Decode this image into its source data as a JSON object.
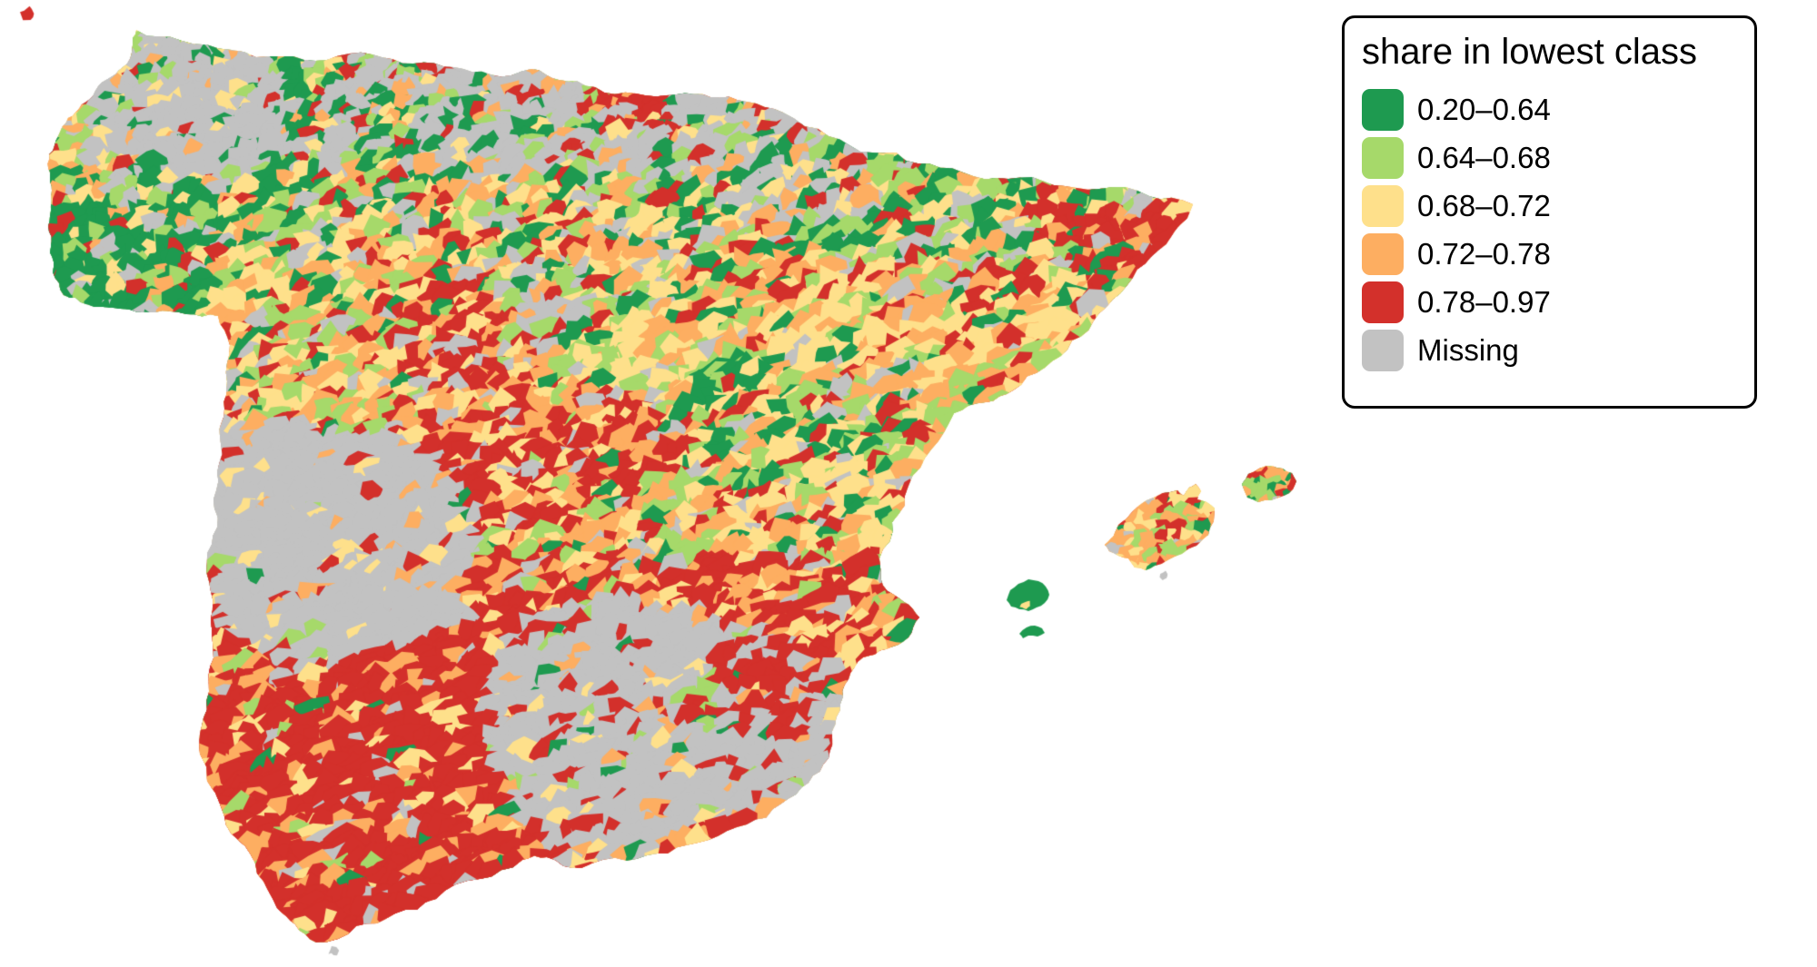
{
  "figure": {
    "type": "choropleth map",
    "region": "Spain — municipality-level map (mainland Spain and Balearic Islands; areas outside Spain are white)",
    "background_color": "#ffffff"
  },
  "legend": {
    "title": "share in lowest class",
    "position": "top-right",
    "border_color": "#000000",
    "background_color": "#ffffff",
    "items": [
      {
        "label": "0.20–0.64",
        "color": "#1e9a50"
      },
      {
        "label": "0.64–0.68",
        "color": "#a6d96a"
      },
      {
        "label": "0.68–0.72",
        "color": "#fee08b"
      },
      {
        "label": "0.72–0.78",
        "color": "#fdae61"
      },
      {
        "label": "0.78–0.97",
        "color": "#d3302b"
      },
      {
        "label": "Missing",
        "color": "#c2c2c2"
      }
    ]
  },
  "chart_data": {
    "type": "choropleth",
    "title": "share in lowest class",
    "variable": "share in lowest class",
    "geography": "Spain, municipalities (peninsula + Balearic Islands)",
    "legend_position": "top-right",
    "classes": [
      {
        "label": "0.20–0.64",
        "from": 0.2,
        "to": 0.64,
        "color": "#1e9a50"
      },
      {
        "label": "0.64–0.68",
        "from": 0.64,
        "to": 0.68,
        "color": "#a6d96a"
      },
      {
        "label": "0.68–0.72",
        "from": 0.68,
        "to": 0.72,
        "color": "#fee08b"
      },
      {
        "label": "0.72–0.78",
        "from": 0.72,
        "to": 0.78,
        "color": "#fdae61"
      },
      {
        "label": "0.78–0.97",
        "from": 0.78,
        "to": 0.97,
        "color": "#d3302b"
      },
      {
        "label": "Missing",
        "from": null,
        "to": null,
        "color": "#c2c2c2"
      }
    ],
    "spatial_pattern": [
      "Galicia interior (NW) and north-coast strip largely Missing (gray) with dark-green municipalities in west/south Galicia",
      "Castile-León (N-center) mixed light green / yellow / orange with a red cluster near Valladolid",
      "Large Missing (gray) block covering Extremadura (W-center)",
      "Red cluster around Madrid–Toledo and far NE (Girona)",
      "Andalusia (S) dominated by 0.78–0.97 red",
      "Large Missing block in SE (Granada–Almería–Murcia interior)",
      "Balearics: Ibiza/Formentera dark green, Mallorca orange/yellow mix, Menorca green-orange mix"
    ]
  }
}
